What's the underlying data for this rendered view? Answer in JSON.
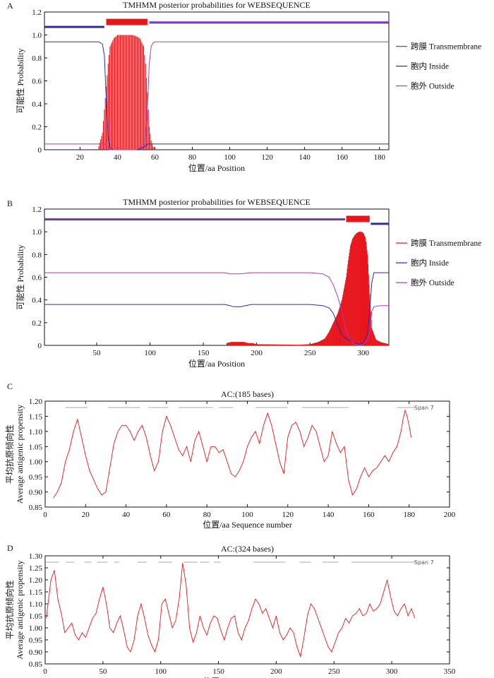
{
  "colors": {
    "transmembrane": "#e8161b",
    "inside": "#2b2bb0",
    "outside": "#b23ab8",
    "antigenic": "#e8161b",
    "frame": "#111111",
    "span": "#aaaaaa"
  },
  "panels": {
    "A": {
      "letter": "A",
      "title": "TMHMM posterior probabilities for WEBSEQUENCE",
      "xlabel": "位置/aa Position",
      "ylabel": "可能性 Probability",
      "legend": [
        "跨膜 Transmembrane",
        "胞内 Inside",
        "胞外 Outside"
      ],
      "xticks": [
        "20",
        "40",
        "60",
        "80",
        "100",
        "120",
        "140",
        "160",
        "180"
      ],
      "yticks": [
        "0",
        "0.2",
        "0.4",
        "0.6",
        "0.8",
        "1.0",
        "1.2"
      ]
    },
    "B": {
      "letter": "B",
      "title": "TMHMM posterior probabilities for WEBSEQUENCE",
      "xlabel": "位置/aa Position",
      "ylabel": "可能性 Probability",
      "legend": [
        "跨膜 Transmembrane",
        "胞内 Inside",
        "胞外 Outside"
      ],
      "xticks": [
        "50",
        "100",
        "150",
        "200",
        "250",
        "300"
      ],
      "yticks": [
        "0",
        "0.2",
        "0.4",
        "0.6",
        "0.8",
        "1.0",
        "1.2"
      ]
    },
    "C": {
      "letter": "C",
      "title": "AC:(185 bases)",
      "xlabel": "位置/aa  Sequence number",
      "ylabel_cn": "平均抗原倾向性",
      "ylabel_en": "Average antigenic propensity",
      "span": "Span 7",
      "xticks": [
        "0",
        "20",
        "40",
        "60",
        "80",
        "100",
        "120",
        "140",
        "160",
        "180",
        "200"
      ],
      "yticks": [
        "0.85",
        "0.90",
        "0.95",
        "1.00",
        "1.05",
        "1.10",
        "1.15",
        "1.20"
      ]
    },
    "D": {
      "letter": "D",
      "title": "AC:(324 bases)",
      "xlabel": "位置/aa  Sequence number",
      "ylabel_cn": "平均抗原倾向性",
      "ylabel_en": "Average antigenic propensity",
      "span": "Span 7",
      "xticks": [
        "0",
        "50",
        "100",
        "150",
        "200",
        "250",
        "300",
        "350"
      ],
      "yticks": [
        "0.85",
        "0.90",
        "0.95",
        "1.00",
        "1.05",
        "1.10",
        "1.15",
        "1.20",
        "1.25",
        "1.30"
      ]
    }
  },
  "chart_data": [
    {
      "type": "line",
      "panel": "A",
      "xlim": [
        1,
        185
      ],
      "ylim": [
        0,
        1.2
      ],
      "series": [
        {
          "name": "跨膜 Transmembrane",
          "style": "vertical-bars",
          "x": [
            30,
            32,
            34,
            35,
            36,
            38,
            40,
            42,
            44,
            46,
            48,
            50,
            52,
            54,
            55,
            56,
            57,
            58,
            59,
            60
          ],
          "values": [
            0.03,
            0.15,
            0.55,
            0.75,
            0.9,
            0.97,
            1.0,
            1.0,
            1.0,
            1.0,
            1.0,
            0.99,
            0.97,
            0.9,
            0.75,
            0.5,
            0.2,
            0.08,
            0.03,
            0.01
          ]
        },
        {
          "name": "胞内 Inside",
          "x": [
            1,
            20,
            30,
            32,
            33,
            34,
            35,
            36,
            38,
            40,
            50,
            54,
            56,
            57,
            58,
            60,
            80,
            100,
            120,
            140,
            160,
            185
          ],
          "values": [
            0.94,
            0.94,
            0.94,
            0.92,
            0.82,
            0.45,
            0.12,
            0.02,
            0,
            0,
            0,
            0.02,
            0.05,
            0.05,
            0.05,
            0.05,
            0.05,
            0.05,
            0.05,
            0.05,
            0.05,
            0.05
          ]
        },
        {
          "name": "胞外 Outside",
          "x": [
            1,
            20,
            30,
            32,
            33,
            34,
            35,
            36,
            38,
            40,
            50,
            54,
            55,
            56,
            57,
            58,
            59,
            60,
            80,
            100,
            120,
            140,
            160,
            185
          ],
          "values": [
            0.05,
            0.05,
            0.05,
            0.05,
            0.05,
            0.04,
            0.02,
            0,
            0,
            0,
            0,
            0.03,
            0.1,
            0.35,
            0.75,
            0.9,
            0.93,
            0.94,
            0.94,
            0.94,
            0.94,
            0.94,
            0.94,
            0.94
          ]
        }
      ],
      "topology": [
        {
          "region": "inside",
          "from": 1,
          "to": 33
        },
        {
          "region": "transmembrane",
          "from": 34,
          "to": 56
        },
        {
          "region": "outside",
          "from": 57,
          "to": 185
        }
      ]
    },
    {
      "type": "line",
      "panel": "B",
      "xlim": [
        1,
        324
      ],
      "ylim": [
        0,
        1.2
      ],
      "series": [
        {
          "name": "跨膜 Transmembrane",
          "style": "vertical-bars",
          "x": [
            172,
            176,
            180,
            184,
            188,
            192,
            196,
            200,
            240,
            250,
            258,
            264,
            268,
            272,
            276,
            280,
            284,
            286,
            288,
            290,
            292,
            294,
            296,
            298,
            300,
            302,
            304,
            306,
            308,
            312,
            316,
            320,
            324
          ],
          "values": [
            0.02,
            0.03,
            0.03,
            0.03,
            0.03,
            0.02,
            0.02,
            0.01,
            0.005,
            0.01,
            0.03,
            0.06,
            0.12,
            0.2,
            0.28,
            0.4,
            0.6,
            0.75,
            0.88,
            0.94,
            0.97,
            0.99,
            1.0,
            1.0,
            0.99,
            0.95,
            0.8,
            0.45,
            0.15,
            0.05,
            0.03,
            0.02,
            0.01
          ]
        },
        {
          "name": "胞内 Inside",
          "x": [
            1,
            170,
            175,
            178,
            185,
            195,
            200,
            250,
            262,
            268,
            272,
            276,
            280,
            284,
            288,
            292,
            296,
            300,
            304,
            306,
            308,
            310,
            324
          ],
          "values": [
            0.36,
            0.36,
            0.35,
            0.34,
            0.34,
            0.36,
            0.36,
            0.36,
            0.35,
            0.33,
            0.28,
            0.18,
            0.09,
            0.06,
            0.04,
            0.02,
            0.01,
            0.02,
            0.1,
            0.3,
            0.55,
            0.64,
            0.64
          ]
        },
        {
          "name": "胞外 Outside",
          "x": [
            1,
            170,
            175,
            178,
            185,
            195,
            200,
            250,
            262,
            268,
            272,
            276,
            280,
            284,
            288,
            292,
            296,
            300,
            304,
            306,
            308,
            310,
            316,
            324
          ],
          "values": [
            0.64,
            0.64,
            0.63,
            0.63,
            0.63,
            0.64,
            0.64,
            0.64,
            0.63,
            0.6,
            0.53,
            0.43,
            0.3,
            0.12,
            0.05,
            0.01,
            0,
            0.01,
            0.04,
            0.12,
            0.3,
            0.34,
            0.35,
            0.35
          ]
        }
      ],
      "topology": [
        {
          "region": "outside",
          "from": 1,
          "to": 283
        },
        {
          "region": "transmembrane",
          "from": 284,
          "to": 306
        },
        {
          "region": "inside",
          "from": 307,
          "to": 324
        }
      ]
    },
    {
      "type": "line",
      "panel": "C",
      "xlim": [
        0,
        200
      ],
      "ylim": [
        0.85,
        1.2
      ],
      "series": [
        {
          "name": "",
          "x": [
            4,
            6,
            8,
            10,
            12,
            14,
            15,
            16,
            18,
            20,
            22,
            24,
            26,
            28,
            30,
            32,
            34,
            36,
            38,
            40,
            42,
            44,
            46,
            48,
            50,
            52,
            54,
            56,
            58,
            60,
            62,
            64,
            66,
            68,
            70,
            72,
            74,
            76,
            78,
            80,
            82,
            84,
            86,
            88,
            90,
            92,
            94,
            96,
            98,
            100,
            102,
            104,
            106,
            108,
            110,
            112,
            114,
            116,
            118,
            120,
            122,
            124,
            126,
            128,
            130,
            132,
            134,
            136,
            138,
            140,
            142,
            144,
            146,
            148,
            150,
            152,
            154,
            156,
            158,
            160,
            162,
            164,
            166,
            168,
            170,
            172,
            174,
            176,
            177,
            178,
            179,
            180,
            181
          ],
          "values": [
            0.88,
            0.9,
            0.93,
            1.0,
            1.04,
            1.1,
            1.12,
            1.14,
            1.08,
            1.02,
            0.97,
            0.94,
            0.91,
            0.89,
            0.9,
            0.98,
            1.06,
            1.1,
            1.12,
            1.12,
            1.1,
            1.07,
            1.1,
            1.12,
            1.08,
            1.02,
            0.97,
            1.0,
            1.1,
            1.15,
            1.12,
            1.08,
            1.04,
            1.02,
            1.05,
            1.0,
            1.07,
            1.1,
            1.05,
            1.0,
            1.05,
            1.05,
            1.03,
            1.04,
            1.0,
            0.96,
            0.95,
            0.97,
            1.0,
            1.05,
            1.08,
            1.1,
            1.06,
            1.12,
            1.16,
            1.12,
            1.06,
            1.0,
            0.96,
            1.08,
            1.12,
            1.13,
            1.1,
            1.05,
            1.08,
            1.12,
            1.1,
            1.05,
            1.0,
            1.02,
            1.1,
            1.06,
            1.03,
            1.05,
            0.94,
            0.89,
            0.91,
            0.95,
            0.98,
            0.95,
            0.97,
            0.98,
            1.0,
            1.02,
            1.0,
            1.03,
            1.05,
            1.1,
            1.14,
            1.17,
            1.15,
            1.12,
            1.08
          ]
        }
      ],
      "spans": [
        [
          10,
          21
        ],
        [
          31,
          47
        ],
        [
          51,
          61
        ],
        [
          66,
          83
        ],
        [
          86,
          93
        ],
        [
          104,
          120
        ],
        [
          127,
          150
        ],
        [
          174,
          183
        ]
      ]
    },
    {
      "type": "line",
      "panel": "D",
      "xlim": [
        0,
        350
      ],
      "ylim": [
        0.85,
        1.3
      ],
      "series": [
        {
          "name": "",
          "x": [
            1,
            5,
            8,
            11,
            14,
            17,
            20,
            23,
            26,
            29,
            32,
            35,
            38,
            41,
            44,
            47,
            50,
            53,
            56,
            59,
            62,
            65,
            68,
            71,
            74,
            77,
            80,
            83,
            86,
            89,
            92,
            95,
            98,
            101,
            104,
            107,
            110,
            113,
            116,
            119,
            122,
            125,
            128,
            131,
            134,
            137,
            140,
            143,
            146,
            149,
            152,
            155,
            158,
            161,
            164,
            167,
            170,
            173,
            176,
            179,
            182,
            185,
            188,
            191,
            194,
            197,
            200,
            203,
            206,
            209,
            212,
            215,
            218,
            221,
            224,
            227,
            230,
            233,
            236,
            239,
            242,
            245,
            248,
            251,
            254,
            257,
            260,
            263,
            266,
            269,
            272,
            275,
            278,
            281,
            284,
            287,
            290,
            293,
            296,
            299,
            302,
            305,
            308,
            311,
            314,
            317,
            320
          ],
          "values": [
            1.04,
            1.2,
            1.24,
            1.12,
            1.06,
            0.98,
            1.0,
            1.02,
            0.97,
            0.95,
            0.98,
            0.96,
            1.0,
            1.04,
            1.06,
            1.12,
            1.17,
            1.1,
            1.0,
            0.98,
            1.02,
            1.05,
            0.99,
            0.92,
            0.9,
            0.95,
            1.05,
            1.1,
            1.04,
            0.97,
            0.93,
            0.9,
            0.95,
            1.1,
            1.12,
            1.06,
            1.0,
            1.03,
            1.12,
            1.27,
            1.18,
            1.0,
            0.94,
            0.98,
            1.05,
            1.0,
            0.97,
            1.02,
            1.05,
            1.04,
            0.99,
            0.95,
            1.0,
            1.04,
            1.05,
            0.98,
            0.95,
            1.0,
            1.03,
            1.08,
            1.12,
            1.1,
            1.06,
            1.08,
            1.04,
            1.0,
            1.05,
            0.98,
            0.95,
            0.97,
            1.0,
            0.98,
            0.92,
            0.88,
            0.96,
            1.05,
            1.1,
            1.08,
            1.04,
            1.0,
            0.96,
            0.92,
            0.9,
            0.94,
            0.98,
            1.0,
            1.04,
            1.02,
            1.05,
            1.06,
            1.08,
            1.05,
            1.06,
            1.1,
            1.07,
            1.08,
            1.1,
            1.15,
            1.2,
            1.13,
            1.07,
            1.05,
            1.08,
            1.1,
            1.05,
            1.08,
            1.04
          ]
        }
      ],
      "spans": [
        [
          1,
          12
        ],
        [
          18,
          25
        ],
        [
          34,
          40
        ],
        [
          45,
          54
        ],
        [
          60,
          64
        ],
        [
          80,
          88
        ],
        [
          98,
          110
        ],
        [
          120,
          132
        ],
        [
          134,
          142
        ],
        [
          146,
          152
        ],
        [
          180,
          208
        ],
        [
          220,
          230
        ],
        [
          240,
          254
        ],
        [
          265,
          322
        ]
      ]
    }
  ]
}
